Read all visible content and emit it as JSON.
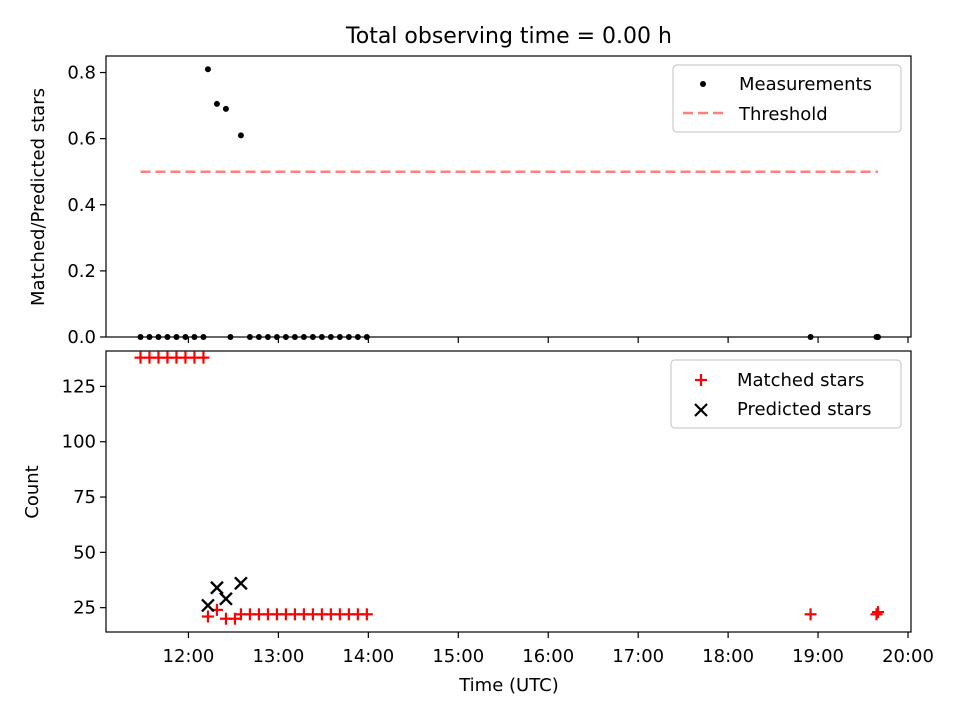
{
  "figure": {
    "title": "Total observing time = 0.00 h"
  },
  "chart_data": [
    {
      "type": "scatter",
      "panel": "top",
      "ylabel": "Matched/Predicted stars",
      "xlabel": "",
      "xlim": [
        "11:05",
        "20:02"
      ],
      "ylim": [
        0,
        0.85
      ],
      "yticks": [
        "0.0",
        "0.2",
        "0.4",
        "0.6",
        "0.8"
      ],
      "yticks_values": [
        0,
        0.2,
        0.4,
        0.6,
        0.8
      ],
      "legend_position": "top-right",
      "series": [
        {
          "name": "Measurements",
          "kind": "scatter",
          "marker": "dot",
          "color": "#000000",
          "points": [
            [
              "11:28",
              0
            ],
            [
              "11:34",
              0
            ],
            [
              "11:40",
              0
            ],
            [
              "11:46",
              0
            ],
            [
              "11:52",
              0
            ],
            [
              "11:58",
              0
            ],
            [
              "12:04",
              0
            ],
            [
              "12:10",
              0
            ],
            [
              "12:13",
              0.81
            ],
            [
              "12:19",
              0.705
            ],
            [
              "12:25",
              0.69
            ],
            [
              "12:28",
              0
            ],
            [
              "12:35",
              0.61
            ],
            [
              "12:41",
              0
            ],
            [
              "12:47",
              0
            ],
            [
              "12:53",
              0
            ],
            [
              "12:59",
              0
            ],
            [
              "13:05",
              0
            ],
            [
              "13:11",
              0
            ],
            [
              "13:17",
              0
            ],
            [
              "13:23",
              0
            ],
            [
              "13:29",
              0
            ],
            [
              "13:35",
              0
            ],
            [
              "13:41",
              0
            ],
            [
              "13:47",
              0
            ],
            [
              "13:53",
              0
            ],
            [
              "13:59",
              0
            ],
            [
              "18:55",
              0
            ],
            [
              "19:39",
              0
            ],
            [
              "19:40",
              0
            ]
          ]
        },
        {
          "name": "Threshold",
          "kind": "line",
          "dashed": true,
          "color": "#ff7f7f",
          "points": [
            [
              "11:28",
              0.5
            ],
            [
              "19:40",
              0.5
            ]
          ]
        }
      ]
    },
    {
      "type": "scatter",
      "panel": "bottom",
      "ylabel": "Count",
      "xlabel": "Time (UTC)",
      "xlim": [
        "11:05",
        "20:02"
      ],
      "ylim": [
        14,
        141
      ],
      "yticks": [
        "25",
        "50",
        "75",
        "100",
        "125"
      ],
      "yticks_values": [
        25,
        50,
        75,
        100,
        125
      ],
      "xticks": [
        "12:00",
        "13:00",
        "14:00",
        "15:00",
        "16:00",
        "17:00",
        "18:00",
        "19:00",
        "20:00"
      ],
      "legend_position": "top-right",
      "series": [
        {
          "name": "Matched stars",
          "kind": "scatter",
          "marker": "plus",
          "color": "#ff0000",
          "points": [
            [
              "11:28",
              138
            ],
            [
              "11:34",
              138
            ],
            [
              "11:40",
              138
            ],
            [
              "11:46",
              138
            ],
            [
              "11:52",
              138
            ],
            [
              "11:58",
              138
            ],
            [
              "12:04",
              138
            ],
            [
              "12:10",
              138
            ],
            [
              "12:13",
              21
            ],
            [
              "12:19",
              24
            ],
            [
              "12:25",
              20
            ],
            [
              "12:31",
              20
            ],
            [
              "12:35",
              22
            ],
            [
              "12:41",
              22
            ],
            [
              "12:47",
              22
            ],
            [
              "12:53",
              22
            ],
            [
              "12:59",
              22
            ],
            [
              "13:05",
              22
            ],
            [
              "13:11",
              22
            ],
            [
              "13:17",
              22
            ],
            [
              "13:23",
              22
            ],
            [
              "13:29",
              22
            ],
            [
              "13:35",
              22
            ],
            [
              "13:41",
              22
            ],
            [
              "13:47",
              22
            ],
            [
              "13:53",
              22
            ],
            [
              "13:59",
              22
            ],
            [
              "18:55",
              22
            ],
            [
              "19:39",
              22
            ],
            [
              "19:40",
              23
            ]
          ]
        },
        {
          "name": "Predicted stars",
          "kind": "scatter",
          "marker": "x",
          "color": "#000000",
          "points": [
            [
              "12:13",
              26
            ],
            [
              "12:19",
              34
            ],
            [
              "12:25",
              29
            ],
            [
              "12:35",
              36
            ]
          ]
        }
      ]
    }
  ]
}
